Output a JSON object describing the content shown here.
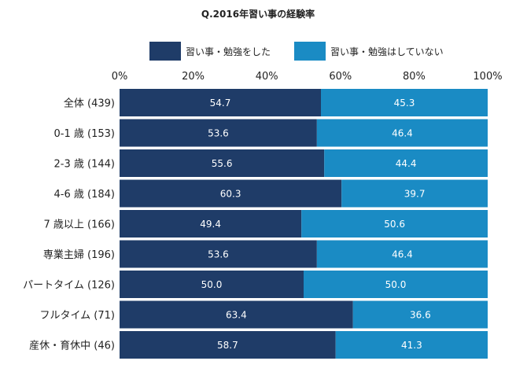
{
  "chart_data": {
    "type": "bar",
    "orientation": "horizontal",
    "stacked": true,
    "title": "Q.2016年習い事の経験率",
    "categories": [
      "全体 (439)",
      "0-1 歳 (153)",
      "2-3 歳 (144)",
      "4-6 歳 (184)",
      "7 歳以上 (166)",
      "専業主婦 (196)",
      "パートタイム (126)",
      "フルタイム (71)",
      "産休・育休中 (46)"
    ],
    "series": [
      {
        "name": "習い事・勉強をした",
        "values": [
          54.7,
          53.6,
          55.6,
          60.3,
          49.4,
          53.6,
          50.0,
          63.4,
          58.7
        ],
        "labels": [
          "54.7",
          "53.6",
          "55.6",
          "60.3",
          "49.4",
          "53.6",
          "50.0",
          "63.4",
          "58.7"
        ]
      },
      {
        "name": "習い事・勉強はしていない",
        "values": [
          45.3,
          46.4,
          44.4,
          39.7,
          50.6,
          46.4,
          50.0,
          36.6,
          41.3
        ],
        "labels": [
          "45.3",
          "46.4",
          "44.4",
          "39.7",
          "50.6",
          "46.4",
          "50.0",
          "36.6",
          "41.3"
        ]
      }
    ],
    "xlim": [
      0,
      100
    ],
    "x_ticks": [
      "0%",
      "20%",
      "40%",
      "60%",
      "80%",
      "100%"
    ],
    "x_tick_values": [
      0,
      20,
      40,
      60,
      80,
      100
    ],
    "xlabel": "",
    "ylabel": "",
    "grid": false,
    "legend_position": "top",
    "colors": [
      "#1f3c68",
      "#1a8bc4"
    ]
  }
}
